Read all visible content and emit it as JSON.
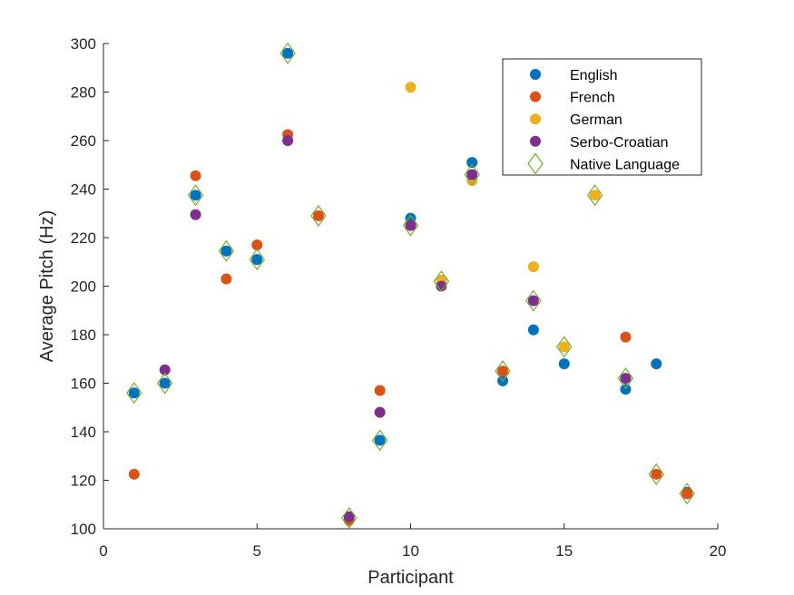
{
  "chart_data": {
    "type": "scatter",
    "title": "",
    "xlabel": "Participant",
    "ylabel": "Average Pitch (Hz)",
    "xlim": [
      0,
      20
    ],
    "ylim": [
      100,
      300
    ],
    "xticks": [
      0,
      5,
      10,
      15,
      20
    ],
    "yticks": [
      100,
      120,
      140,
      160,
      180,
      200,
      220,
      240,
      260,
      280,
      300
    ],
    "grid": false,
    "legend_position": "top-right",
    "series": [
      {
        "name": "English",
        "marker": "filled-circle",
        "color": "#0072BD",
        "points": [
          [
            1,
            156
          ],
          [
            2,
            160
          ],
          [
            3,
            237.5
          ],
          [
            4,
            214.5
          ],
          [
            5,
            211
          ],
          [
            6,
            296
          ],
          [
            9,
            136.5
          ],
          [
            10,
            228
          ],
          [
            12,
            251
          ],
          [
            13,
            161
          ],
          [
            14,
            182
          ],
          [
            15,
            168
          ],
          [
            17,
            157.5
          ],
          [
            18,
            168
          ],
          [
            19,
            115
          ]
        ]
      },
      {
        "name": "French",
        "marker": "filled-circle",
        "color": "#D95319",
        "points": [
          [
            1,
            122.5
          ],
          [
            3,
            245.5
          ],
          [
            4,
            203
          ],
          [
            5,
            217
          ],
          [
            6,
            262.5
          ],
          [
            7,
            229
          ],
          [
            8,
            103.5
          ],
          [
            9,
            157
          ],
          [
            13,
            165
          ],
          [
            17,
            179
          ],
          [
            18,
            122.5
          ],
          [
            19,
            114.5
          ]
        ]
      },
      {
        "name": "German",
        "marker": "filled-circle",
        "color": "#EDB120",
        "points": [
          [
            10,
            282
          ],
          [
            11,
            202.5
          ],
          [
            12,
            243.5
          ],
          [
            14,
            208
          ],
          [
            15,
            175
          ],
          [
            16,
            237.5
          ]
        ]
      },
      {
        "name": "Serbo-Croatian",
        "marker": "filled-circle",
        "color": "#7E2F8E",
        "points": [
          [
            2,
            165.5
          ],
          [
            3,
            229.5
          ],
          [
            6,
            260
          ],
          [
            8,
            105
          ],
          [
            9,
            148
          ],
          [
            10,
            225
          ],
          [
            11,
            200
          ],
          [
            12,
            246
          ],
          [
            14,
            194
          ],
          [
            17,
            162
          ]
        ]
      },
      {
        "name": "Native Language",
        "marker": "open-diamond",
        "color": "#77AC30",
        "points": [
          [
            1,
            156
          ],
          [
            2,
            160
          ],
          [
            3,
            237.5
          ],
          [
            4,
            214.5
          ],
          [
            5,
            211
          ],
          [
            6,
            296
          ],
          [
            7,
            229
          ],
          [
            8,
            104.5
          ],
          [
            9,
            136.5
          ],
          [
            10,
            225
          ],
          [
            11,
            202
          ],
          [
            12,
            246
          ],
          [
            13,
            165
          ],
          [
            14,
            194
          ],
          [
            15,
            175
          ],
          [
            16,
            237.5
          ],
          [
            17,
            162
          ],
          [
            18,
            122.5
          ],
          [
            19,
            114.5
          ]
        ]
      }
    ]
  }
}
